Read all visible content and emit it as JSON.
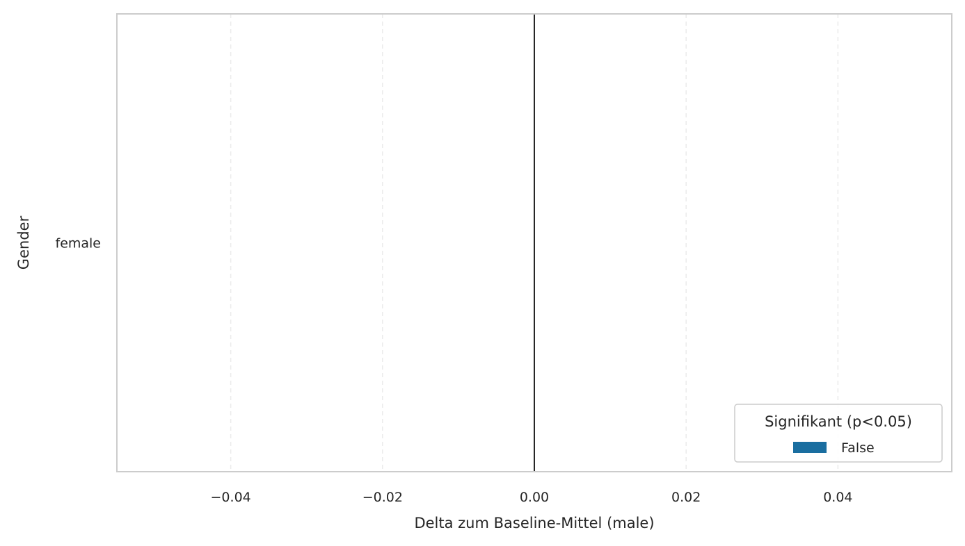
{
  "chart_data": {
    "type": "bar",
    "orientation": "horizontal",
    "categories": [
      "female"
    ],
    "series": [
      {
        "name": "False",
        "values": [
          0.0
        ]
      }
    ],
    "xlabel": "Delta zum Baseline-Mittel (male)",
    "ylabel": "Gender",
    "xlim": [
      -0.055,
      0.055
    ],
    "xticks": [
      -0.04,
      -0.02,
      0.0,
      0.02,
      0.04
    ],
    "xtick_labels": [
      "−0.04",
      "−0.02",
      "0.00",
      "0.02",
      "0.04"
    ],
    "reference_line_x": 0,
    "grid": "x-dashed",
    "legend": {
      "title": "Signifikant (p<0.05)",
      "entries": [
        "False"
      ],
      "placement": "lower-right"
    },
    "colors": {
      "False": "#1a6ea0",
      "reference_line": "#262626",
      "grid": "#ebebeb",
      "frame": "#cccccc"
    }
  }
}
